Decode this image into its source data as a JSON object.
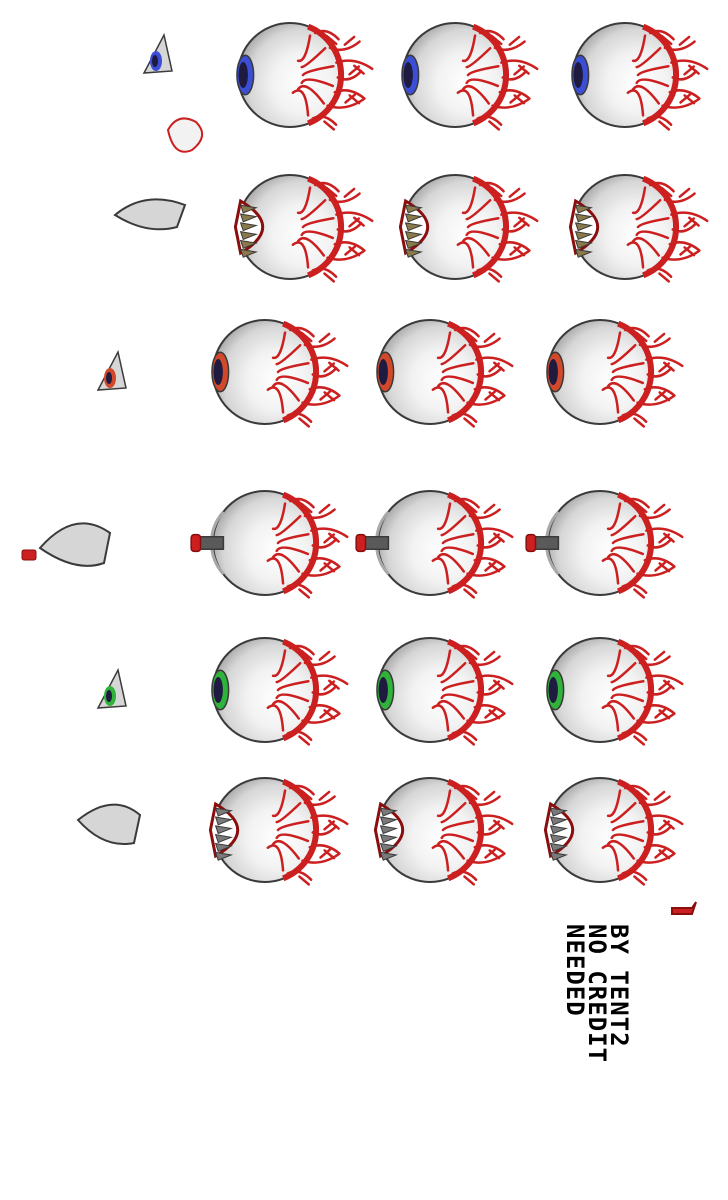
{
  "sheet": {
    "credit_lines": [
      "BY TENT2",
      "NO CREDIT",
      "NEEDED"
    ]
  },
  "palette": {
    "sclera_light": "#f2f2f2",
    "sclera_mid": "#d6d6d6",
    "sclera_shadow": "#a8a8a8",
    "outline": "#3a3a3a",
    "vein": "#cc1f1f",
    "vein_dark": "#8a0e0e",
    "iris_blue": "#3b4fd6",
    "iris_red": "#d2482a",
    "iris_green": "#2fb33a",
    "pupil": "#1e1a40",
    "teeth_tan": "#8a7a4a",
    "teeth_grey": "#7a7a7a",
    "metal": "#5a5a5a"
  },
  "sprite_rows": [
    {
      "name": "eye-of-cthulhu-phase1",
      "variant": "iris",
      "iris": "iris_blue"
    },
    {
      "name": "eye-of-cthulhu-phase2",
      "variant": "mouth",
      "teeth": "teeth_tan"
    },
    {
      "name": "retinazer-phase1",
      "variant": "iris",
      "iris": "iris_red"
    },
    {
      "name": "retinazer-phase2",
      "variant": "laser"
    },
    {
      "name": "spazmatism-phase1",
      "variant": "iris",
      "iris": "iris_green"
    },
    {
      "name": "spazmatism-phase2",
      "variant": "mouth",
      "teeth": "teeth_grey"
    }
  ]
}
